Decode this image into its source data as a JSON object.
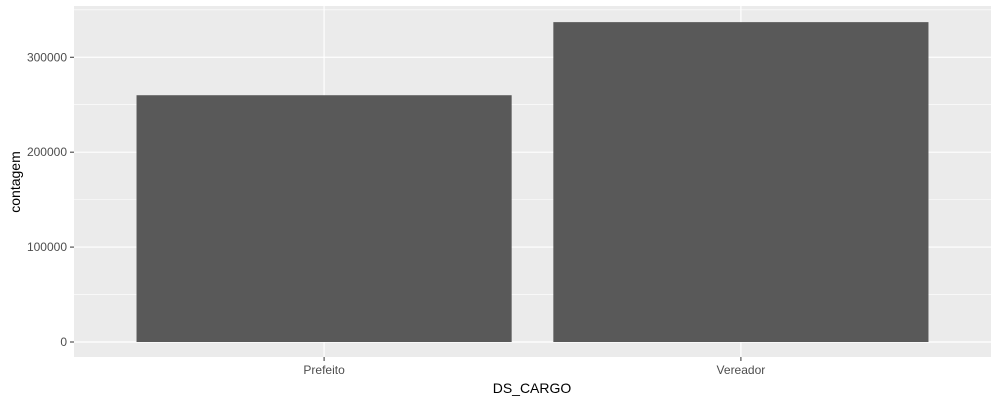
{
  "chart_data": {
    "type": "bar",
    "title": "",
    "xlabel": "DS_CARGO",
    "ylabel": "contagem",
    "categories": [
      "Prefeito",
      "Vereador"
    ],
    "values": [
      260000,
      337000
    ],
    "ylim": [
      0,
      354000
    ],
    "y_ticks": [
      0,
      100000,
      200000,
      300000
    ],
    "y_tick_labels": [
      "0",
      "100000",
      "200000",
      "300000"
    ],
    "grid": true,
    "colors": {
      "bar": "#595959",
      "panel_background": "#ebebeb",
      "grid_major": "#ffffff",
      "tick_label": "#4d4d4d",
      "axis_title": "#000000"
    }
  }
}
